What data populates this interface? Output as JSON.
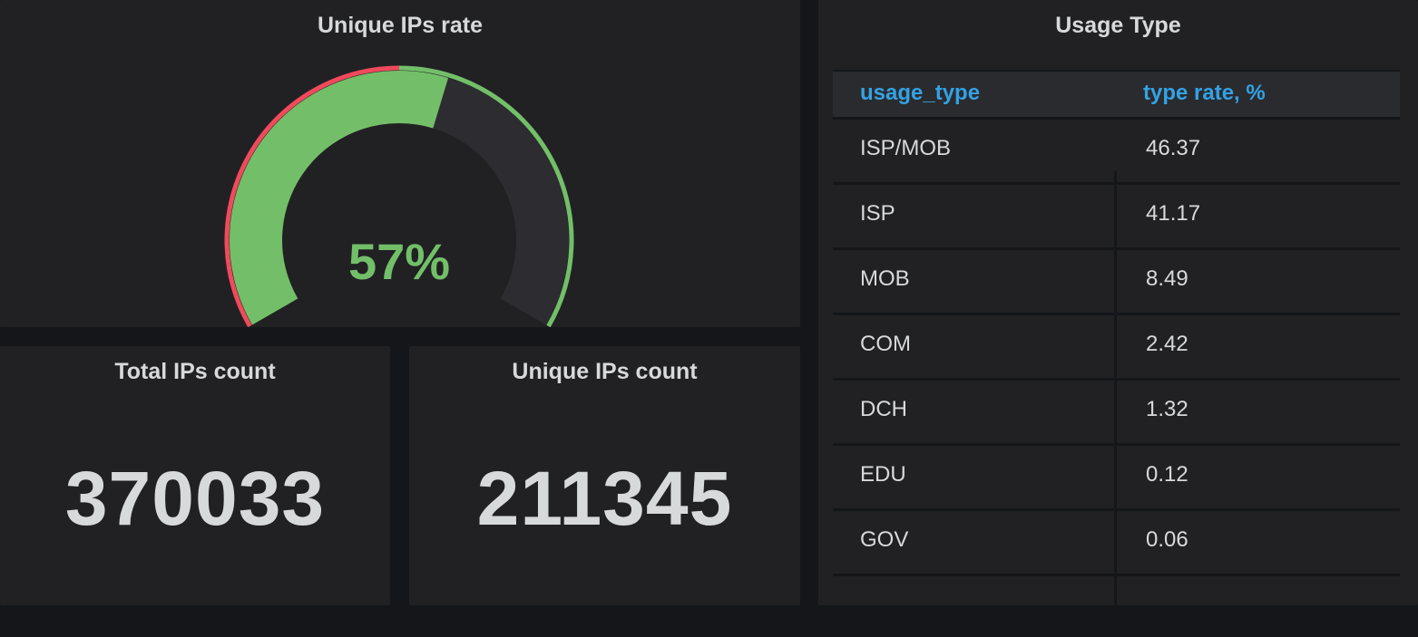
{
  "gauge_panel": {
    "title": "Unique IPs rate",
    "value": 57,
    "value_text": "57%",
    "min": 0,
    "max": 100,
    "threshold": 50,
    "colors": {
      "ok": "#73bf69",
      "critical": "#f2495c",
      "track": "#2d2d31"
    }
  },
  "total_panel": {
    "title": "Total IPs count",
    "value": "370033"
  },
  "unique_panel": {
    "title": "Unique IPs count",
    "value": "211345"
  },
  "table_panel": {
    "title": "Usage Type",
    "columns": [
      "usage_type",
      "type rate, %"
    ],
    "rows": [
      [
        "ISP/MOB",
        "46.37"
      ],
      [
        "ISP",
        "41.17"
      ],
      [
        "MOB",
        "8.49"
      ],
      [
        "COM",
        "2.42"
      ],
      [
        "DCH",
        "1.32"
      ],
      [
        "EDU",
        "0.12"
      ],
      [
        "GOV",
        "0.06"
      ]
    ],
    "header_color": "#33a2e5"
  }
}
